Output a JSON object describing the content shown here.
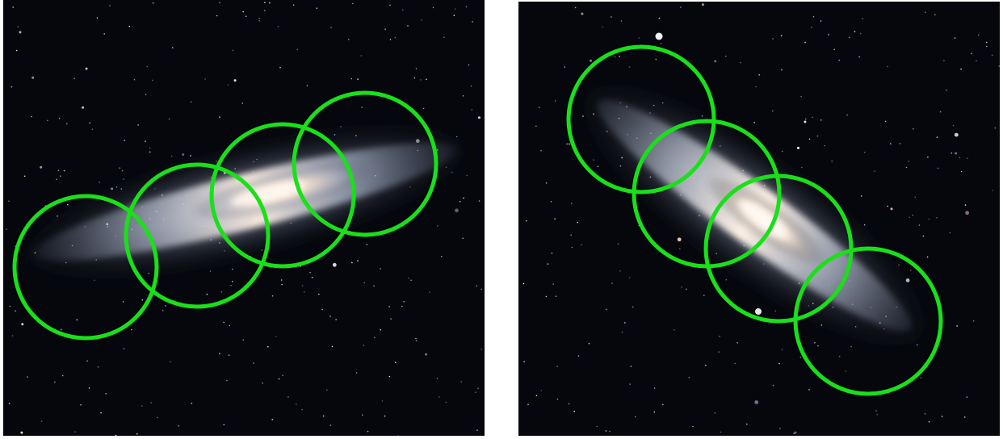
{
  "panels": [
    {
      "name": "left-panel",
      "subject": "edge-on-galaxy",
      "galaxy_orientation_deg": -14,
      "circle_count": 4
    },
    {
      "name": "right-panel",
      "subject": "edge-on-galaxy",
      "galaxy_orientation_deg": 36,
      "circle_count": 4
    }
  ],
  "colors": {
    "background": "#ffffff",
    "sky": "#05070c",
    "galaxy_core": "#fff1df",
    "galaxy_halo": "#9aa8c7",
    "circle_stroke": "#19e019"
  },
  "icons": {
    "star": "star-icon",
    "circle": "circle-icon"
  }
}
